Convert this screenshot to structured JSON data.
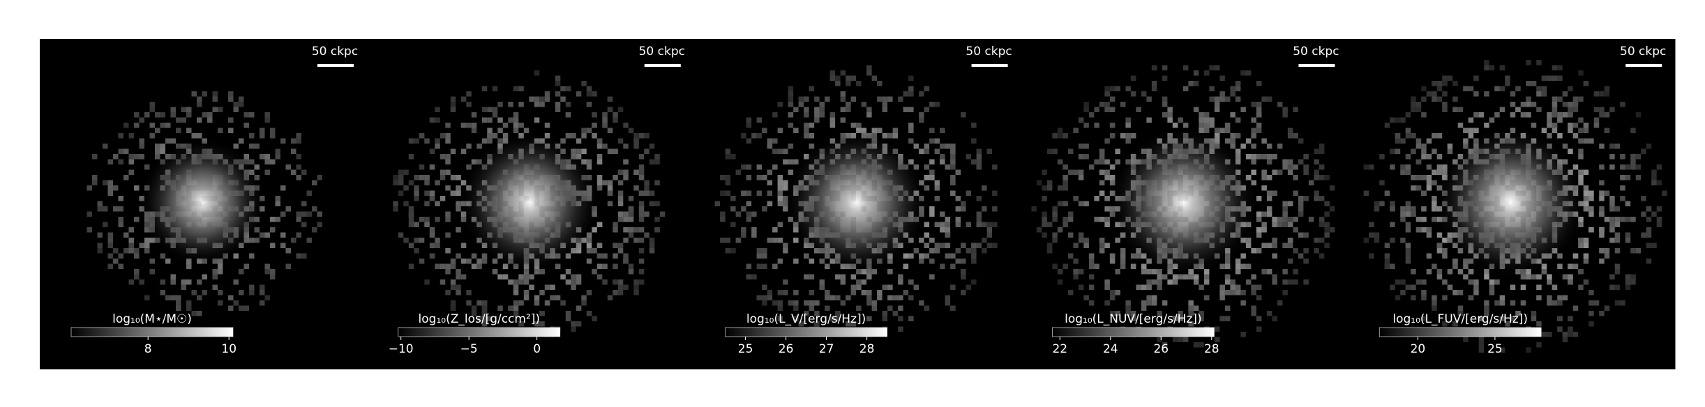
{
  "chart_data": [
    {
      "type": "image",
      "scale_label": "50 ckpc",
      "colorbar_label": "log₁₀(M⋆/M☉)",
      "clim": [
        6.1,
        10.1
      ],
      "cticks": [
        8,
        10
      ],
      "spread": 0.55
    },
    {
      "type": "image",
      "scale_label": "50 ckpc",
      "colorbar_label": "log₁₀(Z_los/[g/ccm²])",
      "clim": [
        -10.2,
        1.7
      ],
      "cticks": [
        {
          "value": -10,
          "label": "−10"
        },
        {
          "value": -5,
          "label": "−5"
        },
        0
      ],
      "spread": 0.8
    },
    {
      "type": "image",
      "scale_label": "50 ckpc",
      "colorbar_label": "log₁₀(L_V/[erg/s/Hz])",
      "clim": [
        24.5,
        28.5
      ],
      "cticks": [
        25,
        26,
        27,
        28
      ],
      "spread": 0.85
    },
    {
      "type": "image",
      "scale_label": "50 ckpc",
      "colorbar_label": "log₁₀(L_NUV/[erg/s/Hz])",
      "clim": [
        21.7,
        28.1
      ],
      "cticks": [
        22,
        24,
        26,
        28
      ],
      "spread": 0.95
    },
    {
      "type": "image",
      "scale_label": "50 ckpc",
      "colorbar_label": "log₁₀(L_FUV/[erg/s/Hz])",
      "clim": [
        17.5,
        28.0
      ],
      "cticks": [
        20,
        25
      ],
      "spread": 1.0
    }
  ]
}
